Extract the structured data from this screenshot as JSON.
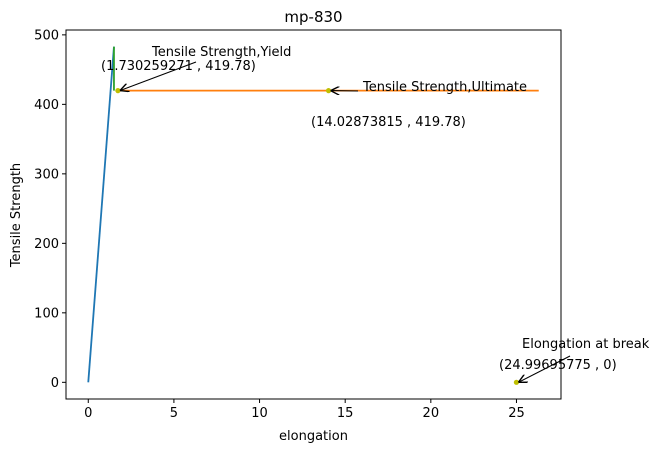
{
  "chart_data": {
    "type": "line",
    "title": "mp-830",
    "xlabel": "elongation",
    "ylabel": "Tensile Strength",
    "xlim": [
      -1.3,
      27.6
    ],
    "ylim": [
      -24,
      507
    ],
    "xticks": [
      0,
      5,
      10,
      15,
      20,
      25
    ],
    "yticks": [
      0,
      100,
      200,
      300,
      400,
      500
    ],
    "grid": false,
    "series": [
      {
        "color": "#1f77b4",
        "x": [
          0,
          1.5
        ],
        "y": [
          0,
          483
        ]
      },
      {
        "color": "#ff7f0e",
        "x": [
          1.73,
          26.3
        ],
        "y": [
          419.78,
          419.78
        ]
      },
      {
        "color": "#2ca02c",
        "x": [
          1.5,
          1.5
        ],
        "y": [
          419.78,
          483
        ]
      }
    ],
    "points": [
      {
        "x": 1.730259271,
        "y": 419.78,
        "color": "#bfbf00"
      },
      {
        "x": 14.02873815,
        "y": 419.78,
        "color": "#bfbf00"
      },
      {
        "x": 24.99695775,
        "y": 0,
        "color": "#bfbf00"
      }
    ],
    "annotations": [
      {
        "label": "Tensile Strength,Yield",
        "value_text": "(1.730259271 , 419.78)",
        "target": [
          1.730259271,
          419.78
        ]
      },
      {
        "label": "Tensile Strength,Ultimate",
        "value_text": "(14.02873815 , 419.78)",
        "target": [
          14.02873815,
          419.78
        ]
      },
      {
        "label": "Elongation at break",
        "value_text": "(24.99695775 , 0)",
        "target": [
          24.99695775,
          0
        ]
      }
    ]
  }
}
